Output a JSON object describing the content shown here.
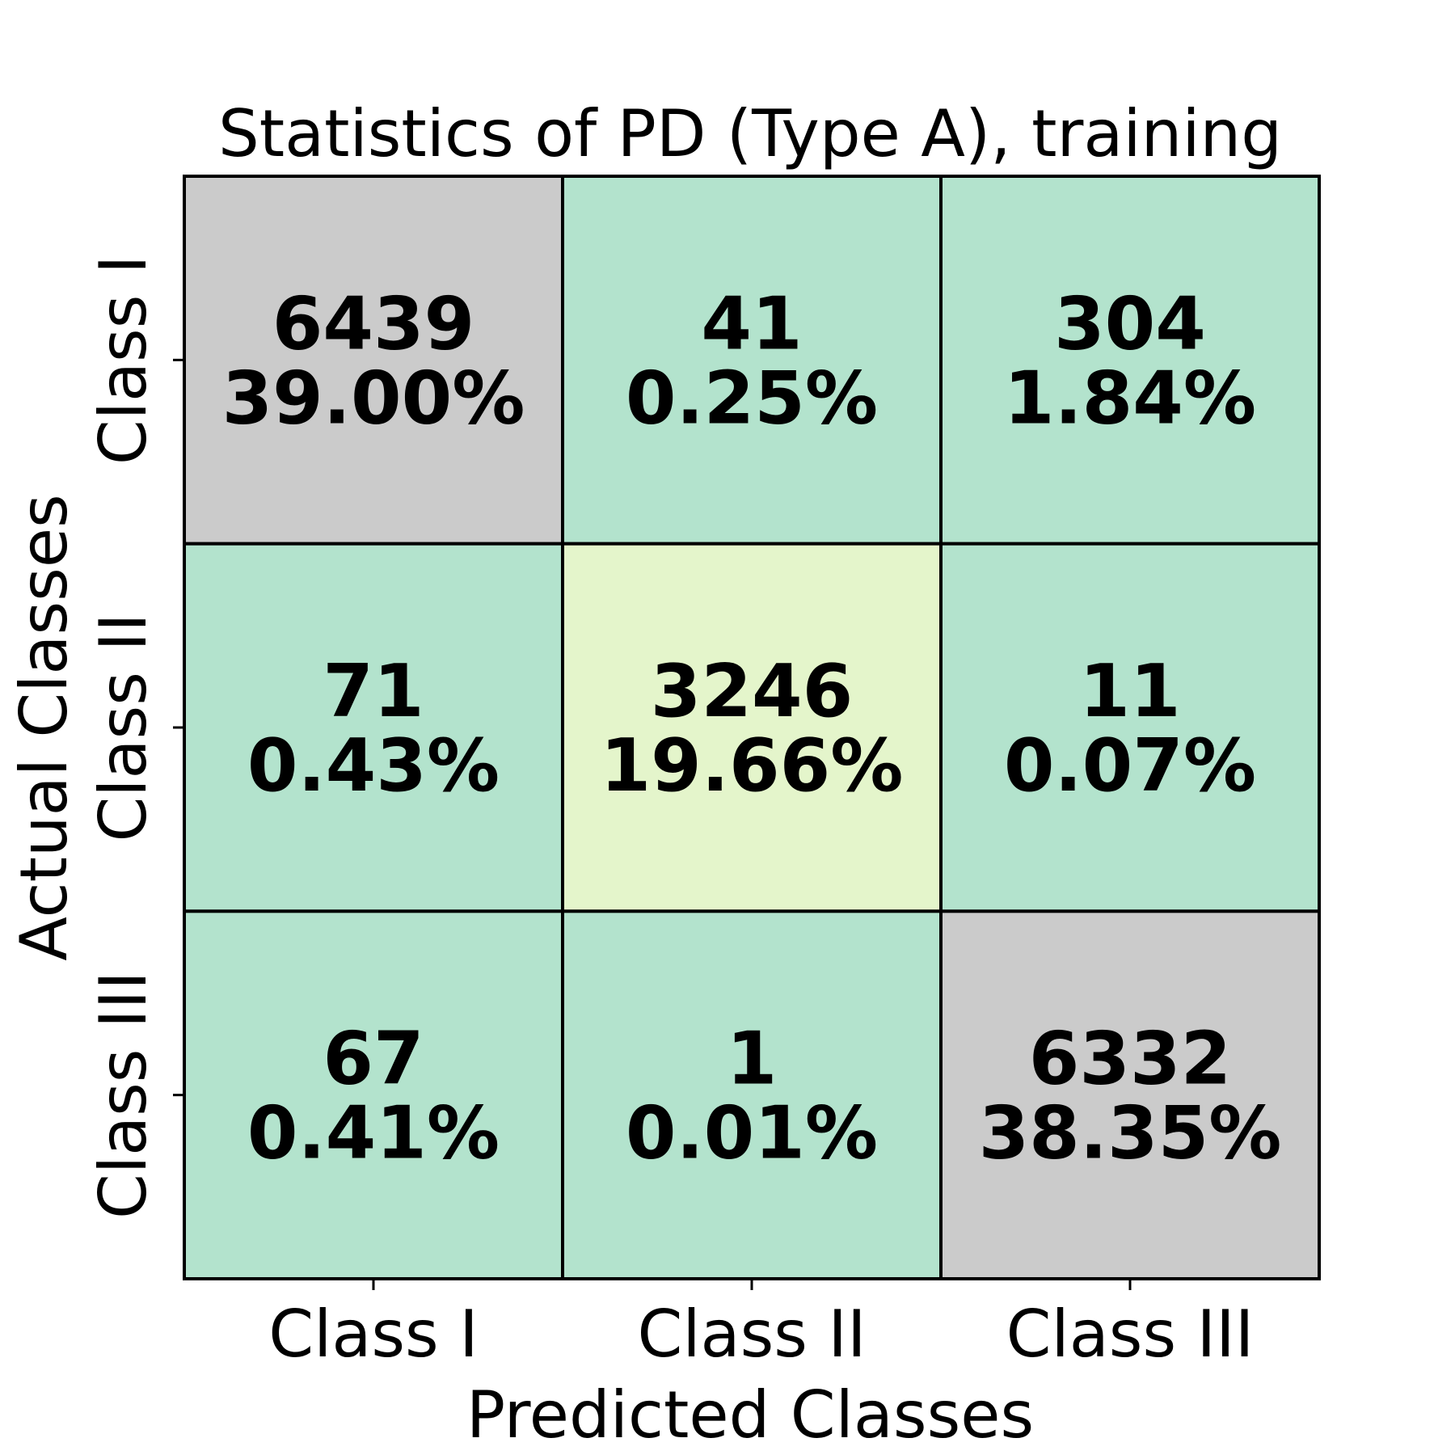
{
  "chart_data": {
    "type": "heatmap",
    "title": "Statistics of PD (Type A), training",
    "xlabel": "Predicted Classes",
    "ylabel": "Actual Classes",
    "x_categories": [
      "Class I",
      "Class II",
      "Class III"
    ],
    "y_categories": [
      "Class I",
      "Class II",
      "Class III"
    ],
    "counts": [
      [
        6439,
        41,
        304
      ],
      [
        71,
        3246,
        11
      ],
      [
        67,
        1,
        6332
      ]
    ],
    "percentages": [
      [
        "39.00%",
        "0.25%",
        "1.84%"
      ],
      [
        "0.43%",
        "19.66%",
        "0.07%"
      ],
      [
        "0.41%",
        "0.01%",
        "38.35%"
      ]
    ],
    "cell_colors": [
      [
        "#cbcbcb",
        "#b3e3cd",
        "#b3e3cd"
      ],
      [
        "#b3e3cd",
        "#e4f5cb",
        "#b3e3cd"
      ],
      [
        "#b3e3cd",
        "#b3e3cd",
        "#cbcbcb"
      ]
    ],
    "grid": false,
    "legend": "none"
  }
}
